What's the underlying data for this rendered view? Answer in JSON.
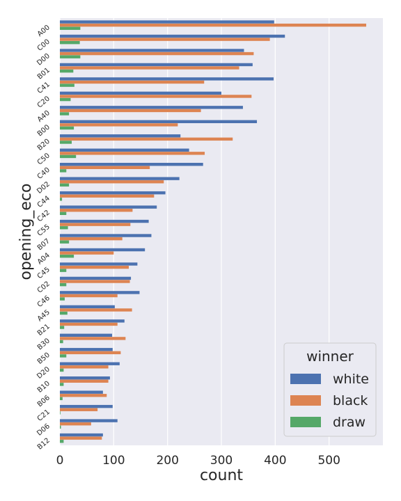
{
  "chart_data": {
    "type": "bar",
    "orientation": "horizontal",
    "categories": [
      "A00",
      "C00",
      "D00",
      "B01",
      "C41",
      "C20",
      "A40",
      "B00",
      "B20",
      "C50",
      "C40",
      "D02",
      "C44",
      "C42",
      "C55",
      "B07",
      "A04",
      "C45",
      "C02",
      "C46",
      "A45",
      "B21",
      "B30",
      "B50",
      "D20",
      "B10",
      "B06",
      "C21",
      "D06",
      "B12"
    ],
    "series": [
      {
        "name": "white",
        "color": "#4c72b0",
        "values": [
          398,
          418,
          342,
          358,
          397,
          300,
          340,
          366,
          224,
          240,
          266,
          222,
          196,
          180,
          165,
          170,
          158,
          144,
          132,
          148,
          102,
          120,
          97,
          98,
          111,
          93,
          80,
          98,
          107,
          80
        ]
      },
      {
        "name": "black",
        "color": "#dd8452",
        "values": [
          569,
          390,
          360,
          333,
          268,
          356,
          262,
          219,
          321,
          269,
          167,
          193,
          175,
          135,
          131,
          116,
          100,
          128,
          130,
          107,
          134,
          107,
          122,
          113,
          90,
          90,
          87,
          70,
          58,
          78
        ]
      },
      {
        "name": "draw",
        "color": "#55a868",
        "values": [
          38,
          37,
          38,
          25,
          27,
          20,
          17,
          26,
          22,
          30,
          12,
          17,
          4,
          12,
          15,
          17,
          26,
          12,
          12,
          9,
          14,
          8,
          6,
          12,
          7,
          7,
          5,
          1,
          2,
          7
        ]
      }
    ],
    "xlabel": "count",
    "ylabel": "opening_eco",
    "xticks": [
      0,
      100,
      200,
      300,
      400,
      500
    ],
    "xlim": [
      0,
      600
    ],
    "legend": {
      "title": "winner",
      "position": "lower-right"
    },
    "grid": true,
    "background": "#eaeaf2"
  }
}
